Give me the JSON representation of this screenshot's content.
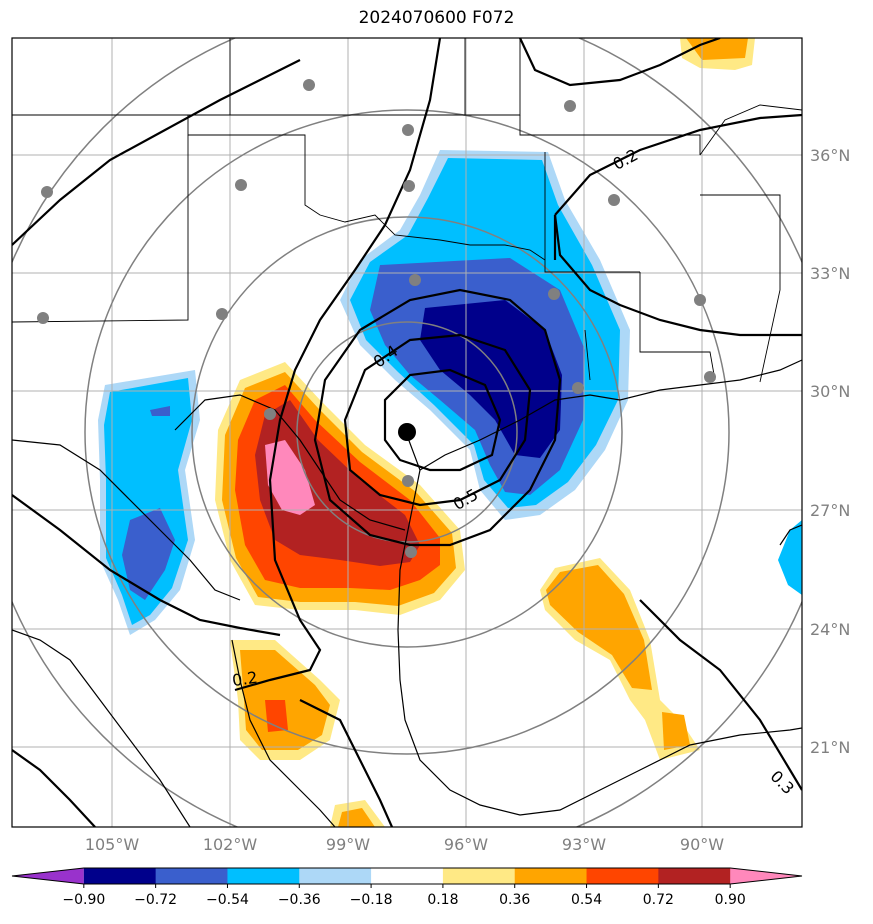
{
  "title": "2024070600 F072",
  "map": {
    "lon_labels": [
      "105°W",
      "102°W",
      "99°W",
      "96°W",
      "93°W",
      "90°W"
    ],
    "lat_labels": [
      "36°N",
      "33°N",
      "30°N",
      "27°N",
      "24°N",
      "21°N"
    ],
    "contour_labels": [
      "0.2",
      "0.4",
      "0.5",
      "0.2",
      "0.3"
    ],
    "storm_center": {
      "lon": -97.2,
      "lat": 28.9
    }
  },
  "colorbar": {
    "ticks": [
      "−0.90",
      "−0.72",
      "−0.54",
      "−0.36",
      "−0.18",
      "0.18",
      "0.36",
      "0.54",
      "0.72",
      "0.90"
    ],
    "colors": [
      "#9932CC",
      "#00008B",
      "#3A5FCD",
      "#00BFFF",
      "#ADD8F7",
      "#FFFFFF",
      "#FFE985",
      "#FFA500",
      "#FF4500",
      "#B22222",
      "#FF88BB"
    ]
  }
}
